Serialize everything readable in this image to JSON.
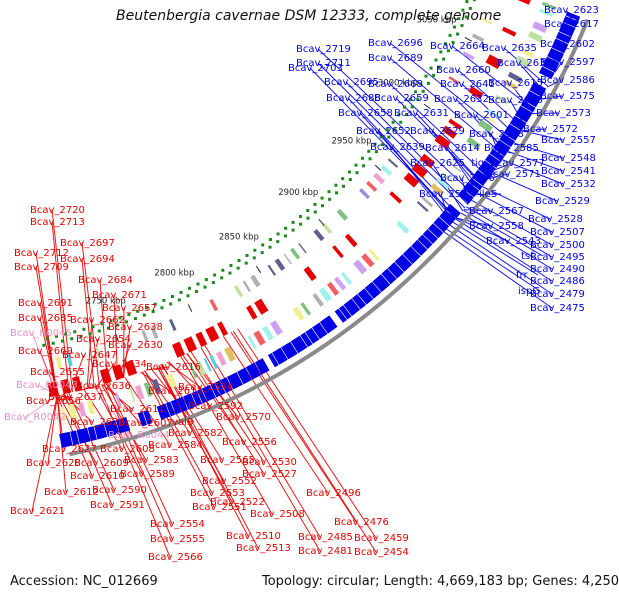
{
  "title": "Beutenbergia cavernae DSM 12333, complete genome",
  "accession": "Accession: NC_012669",
  "summary": "Topology: circular; Length: 4,669,183 bp; Genes: 4,250",
  "colors": {
    "forward": "#0000e6",
    "reverse": "#e60000",
    "rna": "#e890c8",
    "backbone": "#8a8a8a",
    "tick": "#1a8a1a"
  },
  "scale_labels": [
    "3050 kbp",
    "3000 kbp",
    "2950 kbp",
    "2900 kbp",
    "2850 kbp",
    "2800 kbp",
    "2750 kbp"
  ],
  "forward_genes": [
    "Bcav_2623",
    "Bcav_2617",
    "Bcav_2719",
    "Bcav_2696",
    "Bcav_2664",
    "Bcav_2635",
    "Bcav_2602",
    "Bcav_2711",
    "Bcav_2689",
    "Bcav_2633",
    "Bcav_2597",
    "Bcav_2703",
    "Bcav_2660",
    "Bcav_2695",
    "Bcav_2668",
    "Bcav_2641",
    "Bcav_2615",
    "Bcav_2586",
    "Bcav_2688",
    "Bcav_2659",
    "Bcav_2632",
    "Bcav_2603",
    "Bcav_2575",
    "Bcav_2658",
    "Bcav_2631",
    "Bcav_2601",
    "Bcav_2573",
    "Bcav_2652",
    "Bcav_2629",
    "Bcav_2598",
    "Bcav_2572",
    "Bcav_2639",
    "Bcav_2614",
    "Bcav_2585",
    "Bcav_2557",
    "Bcav_2625",
    "tig",
    "Bcav_2577",
    "Bcav_2548",
    "Bcav_2571",
    "Bcav_2541",
    "Bcav_2596",
    "Bcav_2532",
    "Bcav_2595",
    "ileS",
    "Bcav_2529",
    "Bcav_2567",
    "Bcav_2528",
    "Bcav_2558",
    "Bcav_2507",
    "Bcav_2543",
    "Bcav_2500",
    "tsf",
    "Bcav_2495",
    "frr",
    "Bcav_2490",
    "ispG",
    "Bcav_2486",
    "Bcav_2479",
    "Bcav_2475"
  ],
  "reverse_genes": [
    "Bcav_2720",
    "Bcav_2713",
    "Bcav_2697",
    "Bcav_2712",
    "Bcav_2694",
    "Bcav_2709",
    "Bcav_2684",
    "Bcav_2671",
    "Bcav_2691",
    "Bcav_2657",
    "Bcav_2685",
    "Bcav_2662",
    "Bcav_2638",
    "Bcav_2654",
    "Bcav_2630",
    "Bcav_2669",
    "Bcav_2647",
    "Bcav_2616",
    "Bcav_2655",
    "Bcav_2634",
    "Bcav_2636",
    "Bcav_2613",
    "Bcav_2594",
    "Bcav_2656",
    "Bcav_2637",
    "Bcav_2592",
    "Bcav_2611",
    "valS",
    "Bcav_2570",
    "Bcav_2626",
    "Bcav_2607",
    "Bcav_2582",
    "Bcav_2627",
    "Bcav_2608",
    "Bcav_2584",
    "Bcav_2556",
    "Bcav_2628",
    "Bcav_2609",
    "Bcav_2583",
    "Bcav_2565",
    "Bcav_2610",
    "Bcav_2589",
    "Bcav_2530",
    "Bcav_2612",
    "Bcav_2590",
    "Bcav_2552",
    "Bcav_2527",
    "Bcav_2553",
    "Bcav_2591",
    "Bcav_2522",
    "Bcav_2496",
    "Bcav_2621",
    "Bcav_2551",
    "Bcav_2508",
    "Bcav_2554",
    "Bcav_2476",
    "Bcav_2510",
    "Bcav_2485",
    "Bcav_2459",
    "Bcav_2555",
    "Bcav_2513",
    "Bcav_2481",
    "Bcav_2454",
    "Bcav_2566"
  ],
  "rna_genes": [
    "Bcav_R0045",
    "Bcav_R0043",
    "Bcav_R0042",
    "Bcav_R0044"
  ]
}
